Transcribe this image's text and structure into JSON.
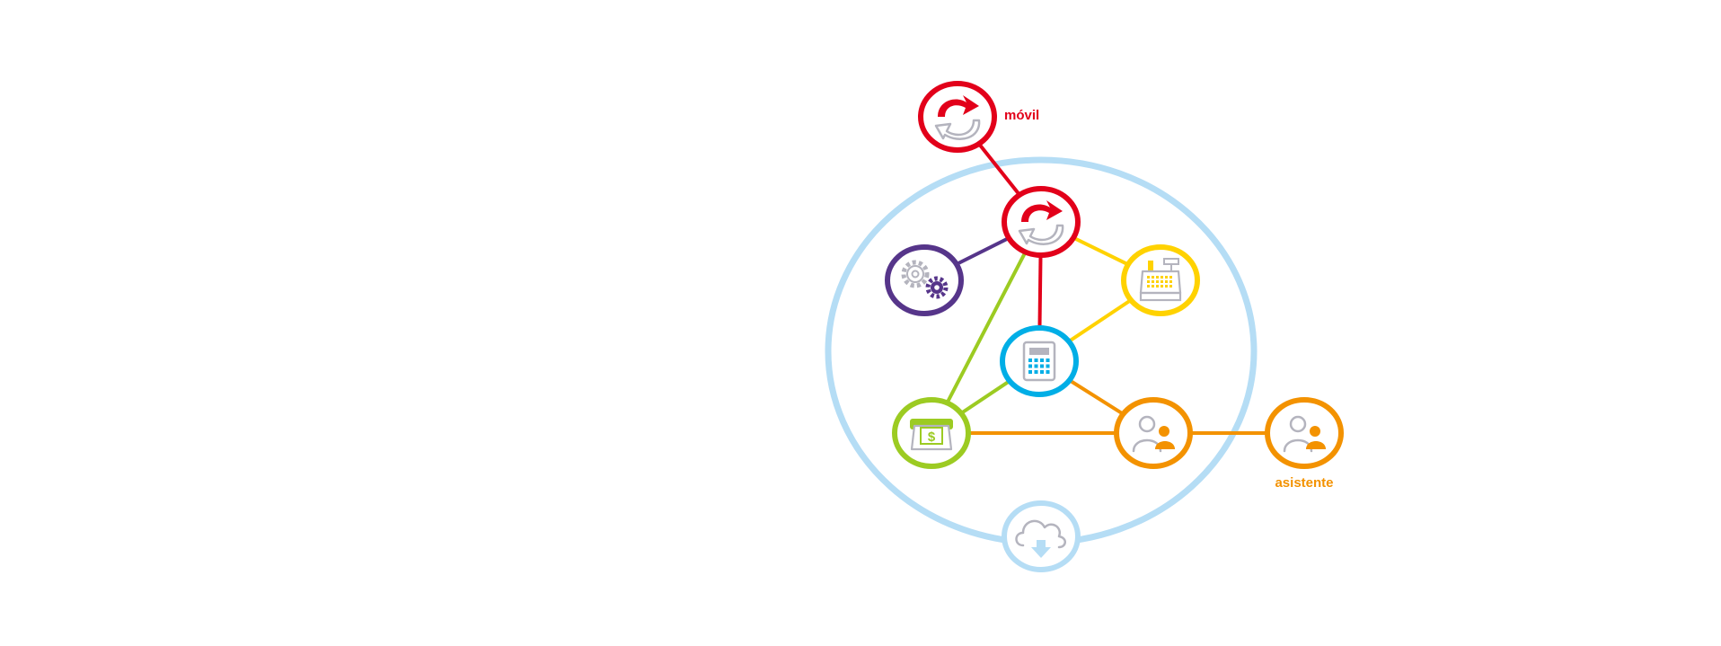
{
  "labels": {
    "movil": "móvil",
    "asistente": "asistente"
  },
  "colors": {
    "red": "#e2001a",
    "purple": "#56358a",
    "yellow": "#ffd200",
    "blue": "#00aee6",
    "green": "#9ccb22",
    "orange": "#f39200",
    "light_blue": "#b5ddf5",
    "icon_gray": "#b4b4be",
    "white": "#ffffff"
  },
  "nodes": [
    {
      "id": "movil-sync",
      "icon": "sync-arrows-icon",
      "color": "red"
    },
    {
      "id": "central-sync",
      "icon": "sync-arrows-icon",
      "color": "red"
    },
    {
      "id": "settings",
      "icon": "gears-icon",
      "color": "purple"
    },
    {
      "id": "cash-register",
      "icon": "cash-register-icon",
      "color": "yellow"
    },
    {
      "id": "calculator",
      "icon": "calculator-icon",
      "color": "blue"
    },
    {
      "id": "payment",
      "icon": "cash-payment-icon",
      "color": "green"
    },
    {
      "id": "users",
      "icon": "users-icon",
      "color": "orange"
    },
    {
      "id": "asistente-users",
      "icon": "users-icon",
      "color": "orange"
    },
    {
      "id": "cloud",
      "icon": "cloud-download-icon",
      "color": "light_blue"
    }
  ],
  "edges": [
    {
      "from": "movil-sync",
      "to": "central-sync",
      "color": "red"
    },
    {
      "from": "central-sync",
      "to": "settings",
      "color": "purple"
    },
    {
      "from": "central-sync",
      "to": "cash-register",
      "color": "yellow"
    },
    {
      "from": "central-sync",
      "to": "calculator",
      "color": "red"
    },
    {
      "from": "central-sync",
      "to": "payment",
      "color": "green"
    },
    {
      "from": "calculator",
      "to": "cash-register",
      "color": "yellow"
    },
    {
      "from": "calculator",
      "to": "payment",
      "color": "green"
    },
    {
      "from": "calculator",
      "to": "users",
      "color": "orange"
    },
    {
      "from": "payment",
      "to": "users",
      "color": "orange"
    },
    {
      "from": "users",
      "to": "asistente-users",
      "color": "orange"
    }
  ]
}
